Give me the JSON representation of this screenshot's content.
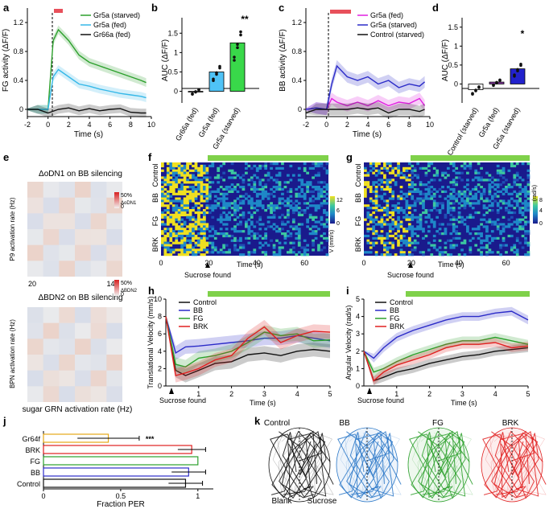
{
  "colors": {
    "green": "#2ca02c",
    "lightgreen": "#7fd14a",
    "cyan": "#35b8e8",
    "blue": "#2b2bc8",
    "magenta": "#e020e0",
    "red": "#e02020",
    "black": "#111111",
    "bar_sky": "#4fc3f7",
    "bar_green": "#39d84a",
    "bar_blue": "#2222cc",
    "bar_purple": "#8a3aa8",
    "gold": "#e6a817",
    "marker_red": "#e8505b"
  },
  "panels": {
    "a": "a",
    "b": "b",
    "c": "c",
    "d": "d",
    "e": "e",
    "f": "f",
    "g": "g",
    "h": "h",
    "i": "i",
    "j": "j",
    "k": "k"
  },
  "chart_data": [
    {
      "id": "a",
      "type": "line",
      "ylabel": "FG activity (ΔF/F)",
      "xlabel": "Time (s)",
      "xlim": [
        -2,
        10
      ],
      "ylim": [
        -0.1,
        1.4
      ],
      "xticks": [
        "-2",
        "0",
        "2",
        "4",
        "6",
        "8",
        "10"
      ],
      "yticks": [
        "0",
        "0.4",
        "0.8",
        "1.2"
      ],
      "series": [
        {
          "name": "Gr5a (starved)",
          "color": "#2ca02c",
          "x": [
            -2,
            -1,
            0,
            0.5,
            1,
            2,
            3,
            4,
            5,
            6,
            7,
            8,
            9,
            9.5
          ],
          "y": [
            0,
            0,
            0,
            0.95,
            1.1,
            0.95,
            0.75,
            0.65,
            0.6,
            0.55,
            0.5,
            0.45,
            0.4,
            0.37
          ]
        },
        {
          "name": "Gr5a (fed)",
          "color": "#35b8e8",
          "x": [
            -2,
            -1,
            0,
            0.5,
            1,
            2,
            3,
            4,
            5,
            6,
            7,
            8,
            9,
            9.5
          ],
          "y": [
            0,
            0,
            0,
            0.45,
            0.55,
            0.45,
            0.35,
            0.32,
            0.28,
            0.25,
            0.22,
            0.2,
            0.18,
            0.16
          ]
        },
        {
          "name": "Gr66a (fed)",
          "color": "#111111",
          "x": [
            -2,
            -1,
            0,
            1,
            2,
            3,
            4,
            5,
            6,
            7,
            8,
            9,
            9.5
          ],
          "y": [
            0,
            0,
            -0.05,
            0,
            0.02,
            -0.02,
            0.01,
            -0.02,
            0,
            0.01,
            -0.04,
            -0.05,
            -0.05
          ]
        }
      ]
    },
    {
      "id": "b",
      "type": "bar",
      "ylabel": "AUC (ΔF/F)",
      "categories": [
        "Gr66a (fed)",
        "Gr5a (fed)",
        "Gr5a (starved)"
      ],
      "values": [
        0.0,
        0.5,
        1.25
      ],
      "ylim": [
        -0.3,
        1.9
      ],
      "yticks": [
        "0",
        "0.5",
        "1",
        "1.5"
      ],
      "significance": "**"
    },
    {
      "id": "c",
      "type": "line",
      "ylabel": "BB activity (ΔF/F)",
      "xlabel": "Time (s)",
      "xlim": [
        -2,
        10
      ],
      "ylim": [
        -0.1,
        1.4
      ],
      "xticks": [
        "-2",
        "0",
        "2",
        "4",
        "6",
        "8",
        "10"
      ],
      "yticks": [
        "0",
        "0.4",
        "0.8",
        "1.2"
      ],
      "series": [
        {
          "name": "Gr5a (fed)",
          "color": "#e020e0",
          "x": [
            -2,
            -1,
            0,
            0.5,
            1,
            2,
            3,
            4,
            5,
            6,
            7,
            8,
            9,
            9.5
          ],
          "y": [
            0,
            0.02,
            0,
            0.15,
            0.1,
            0.05,
            0.1,
            0.05,
            0.12,
            0.05,
            0.1,
            0.08,
            0.15,
            0.05
          ]
        },
        {
          "name": "Gr5a (starved)",
          "color": "#2b2bc8",
          "x": [
            -2,
            -1,
            0,
            0.5,
            1,
            2,
            3,
            4,
            5,
            6,
            7,
            8,
            9,
            9.5
          ],
          "y": [
            0,
            0.02,
            0,
            0.35,
            0.6,
            0.45,
            0.4,
            0.45,
            0.35,
            0.4,
            0.3,
            0.35,
            0.32,
            0.38
          ]
        },
        {
          "name": "Control (starved)",
          "color": "#111111",
          "x": [
            -2,
            -1,
            0,
            1,
            2,
            3,
            4,
            5,
            6,
            7,
            8,
            9,
            9.5
          ],
          "y": [
            -0.05,
            0,
            0,
            0,
            0,
            0.02,
            0,
            0.02,
            -0.05,
            0,
            0,
            -0.03,
            0
          ]
        }
      ]
    },
    {
      "id": "d",
      "type": "bar",
      "ylabel": "AUC (ΔF/F)",
      "categories": [
        "Control (starved)",
        "Gr5a (fed)",
        "Gr5a (starved)"
      ],
      "values": [
        -0.15,
        0.05,
        0.4
      ],
      "ylim": [
        -0.5,
        1.75
      ],
      "yticks": [
        "0",
        "0.5",
        "1",
        "1.5"
      ],
      "significance": "*"
    },
    {
      "id": "e_top",
      "type": "heatmap",
      "title": "ΔoDN1 on BB silencing",
      "ylabel": "P9 activation rate (Hz)",
      "xticks": [
        "20",
        "140"
      ],
      "colorbar_max": "50%",
      "colorbar_min": "0",
      "colorbar_label": "ΔoDN1"
    },
    {
      "id": "e_bottom",
      "type": "heatmap",
      "title": "ΔBDN2 on BB silencing",
      "ylabel": "BPN activation rate (Hz)",
      "xlabel": "sugar GRN activation rate (Hz)",
      "xticks": [
        "20",
        "140"
      ],
      "colorbar_max": "50%",
      "colorbar_min": "0",
      "colorbar_label": "ΔBDN2"
    },
    {
      "id": "f",
      "type": "heatmap",
      "xlabel": "Time (s)",
      "annotation": "Sucrose found",
      "groups": [
        "Control",
        "BB",
        "FG",
        "BRK"
      ],
      "xticks": [
        "0",
        "20",
        "40",
        "60"
      ],
      "colorbar_ticks": [
        "12",
        "6",
        "0"
      ],
      "colorbar_label": "V (mm/s)"
    },
    {
      "id": "g",
      "type": "heatmap",
      "xlabel": "Time (s)",
      "annotation": "Sucrose found",
      "groups": [
        "Control",
        "BB",
        "FG",
        "BRK"
      ],
      "xticks": [
        "0",
        "20",
        "40",
        "60"
      ],
      "colorbar_ticks": [
        "8",
        "4",
        "0"
      ],
      "colorbar_label": "(rad/s)"
    },
    {
      "id": "h",
      "type": "line",
      "ylabel": "Translational Velocity (mm/s)",
      "xlabel": "Time (s)",
      "annotation": "Sucrose found",
      "xlim": [
        0,
        5
      ],
      "ylim": [
        0,
        10
      ],
      "xticks": [
        "1",
        "2",
        "3",
        "4",
        "5"
      ],
      "yticks": [
        "0",
        "2",
        "4",
        "6",
        "8",
        "10"
      ],
      "series": [
        {
          "name": "Control",
          "color": "#111111",
          "x": [
            0,
            0.3,
            0.6,
            1,
            1.5,
            2,
            2.5,
            3,
            3.5,
            4,
            4.5,
            5
          ],
          "y": [
            8,
            1.8,
            1.2,
            1.8,
            2.6,
            2.8,
            3.6,
            3.8,
            3.5,
            4.0,
            4.2,
            4.0
          ]
        },
        {
          "name": "BB",
          "color": "#2b2bc8",
          "x": [
            0,
            0.3,
            0.6,
            1,
            1.5,
            2,
            2.5,
            3,
            3.5,
            4,
            4.5,
            5
          ],
          "y": [
            8,
            3.8,
            4.5,
            4.6,
            4.8,
            5.0,
            5.2,
            5.5,
            5.5,
            5.8,
            5.5,
            5.2
          ]
        },
        {
          "name": "FG",
          "color": "#2ca02c",
          "x": [
            0,
            0.3,
            0.6,
            1,
            1.5,
            2,
            2.5,
            3,
            3.5,
            4,
            4.5,
            5
          ],
          "y": [
            8,
            2.5,
            2.2,
            3.2,
            3.5,
            4.0,
            5.0,
            6.2,
            5.8,
            6.0,
            5.2,
            5.3
          ]
        },
        {
          "name": "BRK",
          "color": "#e02020",
          "x": [
            0,
            0.3,
            0.6,
            1,
            1.5,
            2,
            2.5,
            3,
            3.5,
            4,
            4.5,
            5
          ],
          "y": [
            8,
            1.2,
            1.5,
            2.0,
            3.0,
            3.5,
            5.5,
            6.8,
            5.0,
            5.8,
            6.3,
            6.2
          ]
        }
      ]
    },
    {
      "id": "i",
      "type": "line",
      "ylabel": "Angular Velocity (rad/s)",
      "xlabel": "Time (s)",
      "annotation": "Sucrose found",
      "xlim": [
        0,
        5
      ],
      "ylim": [
        0,
        5
      ],
      "xticks": [
        "1",
        "2",
        "3",
        "4",
        "5"
      ],
      "yticks": [
        "0",
        "1",
        "2",
        "3",
        "4",
        "5"
      ],
      "series": [
        {
          "name": "Control",
          "color": "#111111",
          "x": [
            0,
            0.3,
            0.6,
            1,
            1.5,
            2,
            2.5,
            3,
            3.5,
            4,
            4.5,
            5
          ],
          "y": [
            2.0,
            0.3,
            0.5,
            0.8,
            1.0,
            1.3,
            1.5,
            1.7,
            1.8,
            2.0,
            2.1,
            2.2
          ]
        },
        {
          "name": "BB",
          "color": "#2b2bc8",
          "x": [
            0,
            0.3,
            0.6,
            1,
            1.5,
            2,
            2.5,
            3,
            3.5,
            4,
            4.5,
            5
          ],
          "y": [
            2.0,
            1.6,
            2.2,
            2.8,
            3.2,
            3.5,
            3.8,
            4.0,
            4.0,
            4.2,
            4.3,
            3.8
          ]
        },
        {
          "name": "FG",
          "color": "#2ca02c",
          "x": [
            0,
            0.3,
            0.6,
            1,
            1.5,
            2,
            2.5,
            3,
            3.5,
            4,
            4.5,
            5
          ],
          "y": [
            2.0,
            0.8,
            1.0,
            1.4,
            1.8,
            2.1,
            2.4,
            2.6,
            2.6,
            2.8,
            2.6,
            2.4
          ]
        },
        {
          "name": "BRK",
          "color": "#e02020",
          "x": [
            0,
            0.3,
            0.6,
            1,
            1.5,
            2,
            2.5,
            3,
            3.5,
            4,
            4.5,
            5
          ],
          "y": [
            2.0,
            0.3,
            0.8,
            1.2,
            1.5,
            1.8,
            2.2,
            2.4,
            2.4,
            2.5,
            2.2,
            2.3
          ]
        }
      ]
    },
    {
      "id": "j",
      "type": "bar",
      "orientation": "horizontal",
      "xlabel": "Fraction PER",
      "categories": [
        "Gr64f",
        "BRK",
        "FG",
        "BB",
        "Control"
      ],
      "values": [
        0.42,
        0.96,
        1.0,
        0.94,
        0.92
      ],
      "errors": [
        0.2,
        0.09,
        0.0,
        0.11,
        0.11
      ],
      "xlim": [
        0,
        1.1
      ],
      "xticks": [
        "0",
        "0.5",
        "1"
      ],
      "significance": "***"
    },
    {
      "id": "k",
      "type": "image",
      "labels": [
        "Control",
        "BB",
        "FG",
        "BRK"
      ],
      "sublabels": [
        "Blank",
        "Sucrose"
      ]
    }
  ]
}
